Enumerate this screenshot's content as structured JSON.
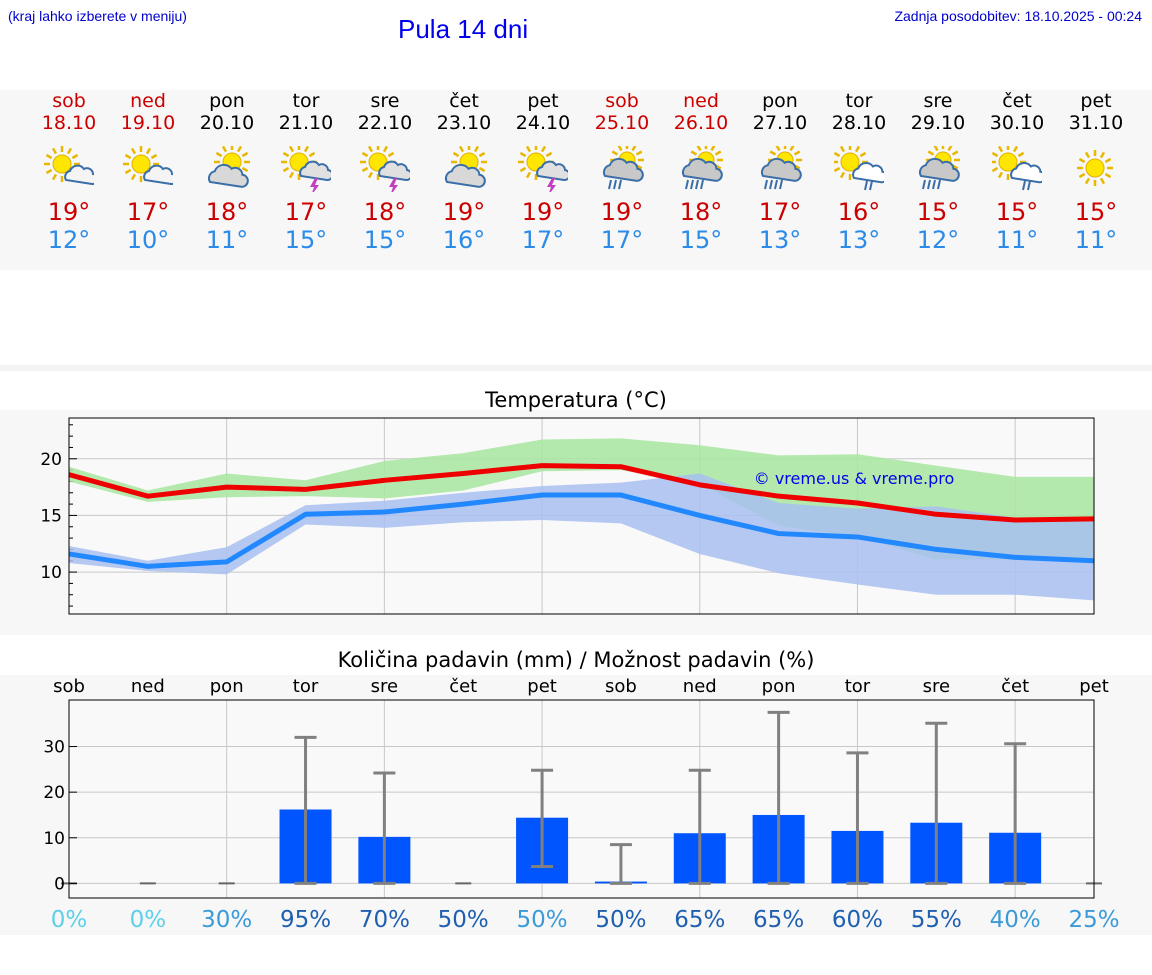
{
  "header": {
    "hint": "(kraj lahko izberete v meniju)",
    "title": "Pula 14 dni",
    "updated": "Zadnja posodobitev: 18.10.2025 - 00:24"
  },
  "days": [
    {
      "name": "sob",
      "date": "18.10",
      "weekend": true,
      "icon": "sun-cloud-icon",
      "tmax": "19°",
      "tmin": "12°"
    },
    {
      "name": "ned",
      "date": "19.10",
      "weekend": true,
      "icon": "sun-cloud-icon",
      "tmax": "17°",
      "tmin": "10°"
    },
    {
      "name": "pon",
      "date": "20.10",
      "weekend": false,
      "icon": "cloud-sun-icon",
      "tmax": "18°",
      "tmin": "11°"
    },
    {
      "name": "tor",
      "date": "21.10",
      "weekend": false,
      "icon": "sun-storm-icon",
      "tmax": "17°",
      "tmin": "15°"
    },
    {
      "name": "sre",
      "date": "22.10",
      "weekend": false,
      "icon": "sun-storm-icon",
      "tmax": "18°",
      "tmin": "15°"
    },
    {
      "name": "čet",
      "date": "23.10",
      "weekend": false,
      "icon": "cloud-sun-icon",
      "tmax": "19°",
      "tmin": "16°"
    },
    {
      "name": "pet",
      "date": "24.10",
      "weekend": false,
      "icon": "sun-storm-icon",
      "tmax": "19°",
      "tmin": "17°"
    },
    {
      "name": "sob",
      "date": "25.10",
      "weekend": true,
      "icon": "cloud-rain-icon",
      "tmax": "19°",
      "tmin": "17°"
    },
    {
      "name": "ned",
      "date": "26.10",
      "weekend": true,
      "icon": "cloud-heavy-rain-icon",
      "tmax": "18°",
      "tmin": "15°"
    },
    {
      "name": "pon",
      "date": "27.10",
      "weekend": false,
      "icon": "cloud-heavy-rain-icon",
      "tmax": "17°",
      "tmin": "13°"
    },
    {
      "name": "tor",
      "date": "28.10",
      "weekend": false,
      "icon": "sun-cloud-rain-icon",
      "tmax": "16°",
      "tmin": "13°"
    },
    {
      "name": "sre",
      "date": "29.10",
      "weekend": false,
      "icon": "cloud-heavy-rain-icon",
      "tmax": "15°",
      "tmin": "12°"
    },
    {
      "name": "čet",
      "date": "30.10",
      "weekend": false,
      "icon": "sun-cloud-rain-icon",
      "tmax": "15°",
      "tmin": "11°"
    },
    {
      "name": "pet",
      "date": "31.10",
      "weekend": false,
      "icon": "sun-icon",
      "tmax": "15°",
      "tmin": "11°"
    }
  ],
  "colors": {
    "weekend": "#cc0000",
    "tmax": "#ee0000",
    "tmin": "#2288ff",
    "max_band": "#a8e6a0",
    "min_band": "#a8bff0",
    "overlap_band": "#7ec4a8",
    "bar": "#0055ff",
    "error": "#808080"
  },
  "chart_data": [
    {
      "type": "line",
      "title": "Temperatura (°C)",
      "watermark": "© vreme.us & vreme.pro",
      "ylim": [
        6.3,
        23.6
      ],
      "yticks": [
        10,
        15,
        20
      ],
      "x": [
        0,
        1,
        2,
        3,
        4,
        5,
        6,
        7,
        8,
        9,
        10,
        11,
        12,
        13
      ],
      "series": [
        {
          "name": "max",
          "values": [
            18.6,
            16.7,
            17.5,
            17.3,
            18.1,
            18.7,
            19.4,
            19.3,
            17.7,
            16.7,
            16.1,
            15.1,
            14.6,
            14.7
          ],
          "band_high": [
            19.3,
            17.2,
            18.7,
            18.1,
            19.8,
            20.5,
            21.7,
            21.8,
            21.2,
            20.3,
            20.4,
            19.4,
            18.4,
            18.4
          ],
          "band_low": [
            18.0,
            16.2,
            16.6,
            16.7,
            16.5,
            17.2,
            18.9,
            19.0,
            17.8,
            14.1,
            13.1,
            11.1,
            11.1,
            11.1
          ]
        },
        {
          "name": "min",
          "values": [
            11.6,
            10.5,
            10.9,
            15.1,
            15.3,
            16.0,
            16.8,
            16.8,
            15.0,
            13.4,
            13.1,
            12.0,
            11.3,
            11.0
          ],
          "band_high": [
            12.3,
            11.0,
            12.2,
            15.9,
            16.3,
            17.0,
            17.6,
            17.9,
            18.7,
            16.1,
            15.6,
            15.8,
            14.8,
            14.5
          ],
          "band_low": [
            10.8,
            10.1,
            9.8,
            14.2,
            13.9,
            14.4,
            14.6,
            14.3,
            11.6,
            9.9,
            8.9,
            8.0,
            8.0,
            7.5
          ]
        }
      ]
    },
    {
      "type": "bar",
      "title": "Količina padavin (mm) / Možnost padavin (%)",
      "categories": [
        "sob",
        "ned",
        "pon",
        "tor",
        "sre",
        "čet",
        "pet",
        "sob",
        "ned",
        "pon",
        "tor",
        "sre",
        "čet",
        "pet"
      ],
      "ylim": [
        -3.2,
        40.2
      ],
      "yticks": [
        0,
        10,
        20,
        30
      ],
      "values": [
        0,
        0,
        0,
        16.2,
        10.2,
        0,
        14.4,
        0.4,
        11.0,
        15.0,
        11.5,
        13.3,
        11.1,
        0
      ],
      "error_high": [
        0,
        0,
        0,
        32.0,
        24.2,
        0,
        24.8,
        8.5,
        24.8,
        37.5,
        28.6,
        35.1,
        30.6,
        0
      ],
      "error_low": [
        0,
        0,
        0,
        0,
        0,
        0,
        3.7,
        0,
        0,
        0,
        0,
        0,
        0,
        0
      ],
      "probability": [
        "0%",
        "0%",
        "30%",
        "95%",
        "70%",
        "50%",
        "50%",
        "50%",
        "65%",
        "65%",
        "60%",
        "55%",
        "40%",
        "25%"
      ],
      "probability_colors": [
        "#5dd0e8",
        "#5dd0e8",
        "#3a9bd8",
        "#1f5fb0",
        "#1f5fb0",
        "#1f5fb0",
        "#3a9bd8",
        "#1f5fb0",
        "#1f5fb0",
        "#1f5fb0",
        "#1f5fb0",
        "#1f5fb0",
        "#3a9bd8",
        "#3a9bd8"
      ]
    }
  ]
}
